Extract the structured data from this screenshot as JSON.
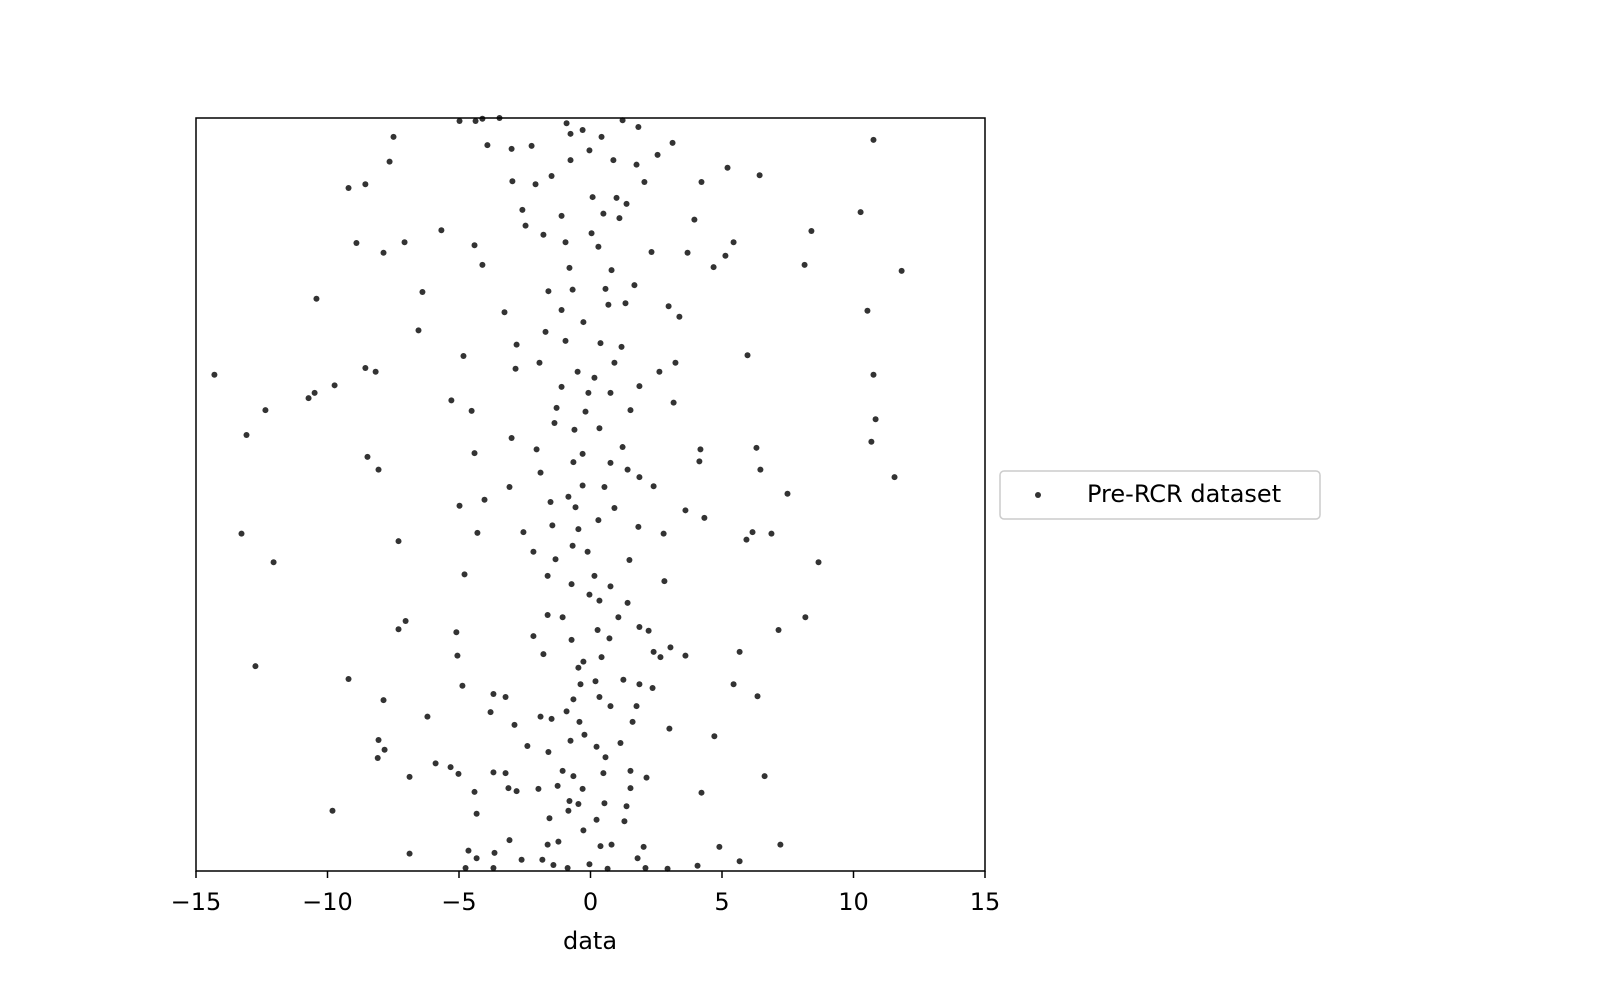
{
  "chart_data": {
    "type": "scatter",
    "xlabel": "data",
    "xlim": [
      -15,
      15
    ],
    "xticks": [
      {
        "value": -15,
        "label": "−15"
      },
      {
        "value": -10,
        "label": "−10"
      },
      {
        "value": -5,
        "label": "−5"
      },
      0,
      5,
      10,
      15
    ],
    "ylim": [
      0,
      1
    ],
    "legend": "right",
    "x": [
      10.76,
      -7.49,
      -7.64,
      -9.2,
      -8.56,
      6.43,
      5.21,
      4.22,
      10.27,
      3.95,
      8.4,
      -8.9,
      -7.07,
      -7.87,
      -5.67,
      -4.41,
      -4.11,
      5.44,
      5.13,
      4.68,
      3.69,
      8.14,
      11.83,
      2.32,
      -10.42,
      -6.39,
      -6.54,
      -3.27,
      2.97,
      3.38,
      10.53,
      -4.83,
      5.97,
      10.76,
      -14.3,
      -8.56,
      -8.17,
      -9.73,
      -10.49,
      -10.72,
      -12.36,
      -5.29,
      -4.52,
      10.84,
      10.68,
      -13.08,
      6.31,
      -8.48,
      -8.06,
      -4.41,
      4.18,
      4.14,
      6.46,
      11.56,
      7.49,
      -4.03,
      -4.98,
      -13.27,
      -7.3,
      -12.05,
      -4.3,
      -4.79,
      5.93,
      6.16,
      6.88,
      8.67,
      4.33,
      3.61,
      2.78,
      2.81,
      -7.03,
      -7.3,
      -5.1,
      -5.06,
      -12.74,
      -9.2,
      -7.87,
      -6.2,
      -4.87,
      8.17,
      7.15,
      5.67,
      5.44,
      6.35,
      4.71,
      3.0,
      3.61,
      6.62,
      4.22,
      -8.06,
      -7.83,
      -8.09,
      -5.89,
      -5.32,
      -5.02,
      -6.88,
      -9.81,
      -6.88,
      -4.41,
      -4.33,
      4.9,
      5.67,
      7.22,
      4.07,
      2.93,
      -4.64,
      -4.33,
      -4.75,
      -3.65,
      -3.69,
      -4.98,
      -4.37,
      -4.11,
      -3.46,
      -3.92,
      -3.0,
      -2.24,
      3.12,
      2.55,
      1.82,
      1.22,
      -0.91,
      -0.76,
      -0.3,
      0.42,
      -0.04,
      -0.76,
      0.87,
      1.75,
      -1.48,
      -2.09,
      -2.97,
      2.05,
      0.08,
      0.99,
      1.37,
      -2.59,
      -1.1,
      0.49,
      1.1,
      -2.47,
      -1.79,
      -0.95,
      0.04,
      0.3,
      -0.8,
      0.8,
      -1.6,
      -0.68,
      1.67,
      0.57,
      0.68,
      1.33,
      -1.1,
      -0.27,
      -1.71,
      -2.81,
      -0.95,
      0.38,
      1.18,
      -1.94,
      -0.49,
      0.15,
      -2.85,
      0.91,
      2.62,
      3.23,
      -1.1,
      -0.08,
      0.76,
      1.86,
      -1.29,
      -0.19,
      1.52,
      3.16,
      -1.37,
      -0.61,
      0.34,
      -3.0,
      -2.05,
      -0.3,
      1.22,
      -0.65,
      0.76,
      -1.9,
      1.41,
      1.86,
      -3.08,
      -0.3,
      0.53,
      2.4,
      -0.84,
      -1.52,
      0.91,
      -0.57,
      -1.45,
      0.3,
      1.82,
      -2.55,
      -0.46,
      -2.17,
      -0.68,
      -0.11,
      1.48,
      -1.63,
      -1.33,
      0.15,
      0.76,
      -0.72,
      -0.04,
      1.41,
      0.34,
      -1.63,
      -1.06,
      1.06,
      0.27,
      1.86,
      2.21,
      -2.17,
      -0.72,
      0.72,
      3.04,
      -1.79,
      -0.27,
      0.42,
      2.4,
      2.66,
      -0.46,
      0.19,
      -0.38,
      1.25,
      1.86,
      2.36,
      -3.69,
      -3.23,
      -3.8,
      -0.65,
      0.34,
      -1.9,
      -0.91,
      0.76,
      1.75,
      -2.89,
      -1.48,
      -0.42,
      1.6,
      -0.23,
      -0.76,
      0.23,
      1.14,
      -2.4,
      -1.6,
      0.57,
      -1.06,
      -3.69,
      -3.23,
      -0.65,
      0.49,
      2.13,
      1.52,
      -3.12,
      -2.81,
      -1.98,
      -1.25,
      -0.3,
      1.52,
      -0.8,
      -0.46,
      0.53,
      1.37,
      -1.56,
      -0.84,
      0.23,
      1.29,
      -3.08,
      -1.63,
      -1.22,
      -0.27,
      0.38,
      0.8,
      2.02,
      -2.62,
      -1.83,
      -1.41,
      -0.87,
      -0.04,
      0.65,
      2.09,
      1.79
    ],
    "series": [
      {
        "name": "Pre-RCR dataset",
        "color": "#000000",
        "values": [
          0.971,
          0.975,
          0.942,
          0.907,
          0.912,
          0.924,
          0.934,
          0.915,
          0.875,
          0.865,
          0.85,
          0.834,
          0.835,
          0.821,
          0.851,
          0.831,
          0.805,
          0.835,
          0.817,
          0.802,
          0.821,
          0.805,
          0.797,
          0.822,
          0.76,
          0.769,
          0.718,
          0.742,
          0.75,
          0.736,
          0.744,
          0.684,
          0.685,
          0.659,
          0.659,
          0.668,
          0.663,
          0.645,
          0.635,
          0.628,
          0.612,
          0.625,
          0.611,
          0.6,
          0.57,
          0.579,
          0.562,
          0.55,
          0.533,
          0.555,
          0.56,
          0.544,
          0.533,
          0.523,
          0.501,
          0.493,
          0.485,
          0.448,
          0.438,
          0.41,
          0.449,
          0.394,
          0.44,
          0.45,
          0.448,
          0.41,
          0.469,
          0.479,
          0.448,
          0.385,
          0.332,
          0.321,
          0.317,
          0.286,
          0.272,
          0.255,
          0.227,
          0.205,
          0.246,
          0.337,
          0.32,
          0.291,
          0.248,
          0.232,
          0.179,
          0.189,
          0.286,
          0.126,
          0.104,
          0.174,
          0.161,
          0.15,
          0.143,
          0.138,
          0.129,
          0.125,
          0.08,
          0.023,
          0.105,
          0.076,
          0.032,
          0.013,
          0.035,
          0.007,
          0.003,
          0.027,
          0.017,
          0.004,
          0.024,
          0.004,
          0.996,
          0.996,
          0.999,
          1.0,
          0.964,
          0.959,
          0.963,
          0.967,
          0.951,
          0.988,
          0.997,
          0.993,
          0.979,
          0.984,
          0.975,
          0.957,
          0.944,
          0.944,
          0.938,
          0.923,
          0.912,
          0.916,
          0.915,
          0.895,
          0.894,
          0.886,
          0.878,
          0.87,
          0.873,
          0.867,
          0.857,
          0.845,
          0.835,
          0.847,
          0.829,
          0.801,
          0.798,
          0.77,
          0.772,
          0.778,
          0.773,
          0.752,
          0.754,
          0.745,
          0.729,
          0.716,
          0.699,
          0.704,
          0.701,
          0.696,
          0.675,
          0.663,
          0.655,
          0.667,
          0.675,
          0.663,
          0.675,
          0.643,
          0.635,
          0.635,
          0.644,
          0.615,
          0.61,
          0.612,
          0.622,
          0.595,
          0.586,
          0.588,
          0.575,
          0.56,
          0.554,
          0.563,
          0.543,
          0.542,
          0.529,
          0.533,
          0.523,
          0.51,
          0.512,
          0.51,
          0.511,
          0.497,
          0.49,
          0.482,
          0.483,
          0.459,
          0.466,
          0.457,
          0.45,
          0.454,
          0.424,
          0.432,
          0.424,
          0.413,
          0.392,
          0.414,
          0.392,
          0.378,
          0.381,
          0.367,
          0.356,
          0.359,
          0.34,
          0.337,
          0.337,
          0.32,
          0.324,
          0.319,
          0.312,
          0.307,
          0.309,
          0.297,
          0.288,
          0.278,
          0.284,
          0.291,
          0.284,
          0.27,
          0.252,
          0.248,
          0.254,
          0.248,
          0.243,
          0.235,
          0.231,
          0.211,
          0.228,
          0.231,
          0.205,
          0.212,
          0.219,
          0.219,
          0.194,
          0.202,
          0.198,
          0.198,
          0.181,
          0.173,
          0.165,
          0.17,
          0.166,
          0.158,
          0.151,
          0.133,
          0.131,
          0.13,
          0.126,
          0.13,
          0.124,
          0.133,
          0.11,
          0.106,
          0.109,
          0.113,
          0.109,
          0.11,
          0.093,
          0.089,
          0.09,
          0.086,
          0.07,
          0.08,
          0.068,
          0.066,
          0.041,
          0.035,
          0.039,
          0.054,
          0.033,
          0.035,
          0.032,
          0.015,
          0.015,
          0.008,
          0.004,
          0.009,
          0.003,
          0.004,
          0.017
        ]
      }
    ]
  }
}
